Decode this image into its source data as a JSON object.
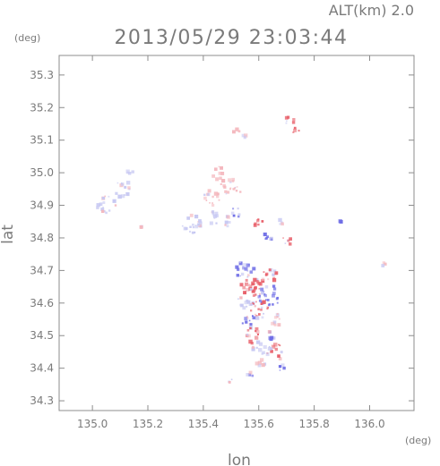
{
  "header": {
    "alt_label": "ALT(km) 2.0",
    "datetime": "2013/05/29 23:03:44"
  },
  "axes": {
    "lat_unit": "(deg)",
    "lon_unit": "(deg)",
    "xlabel": "lon",
    "ylabel": "lat",
    "xlim": [
      134.88,
      136.16
    ],
    "ylim": [
      34.27,
      35.36
    ],
    "xticks": [
      "135.0",
      "135.2",
      "135.4",
      "135.6",
      "135.8",
      "136.0"
    ],
    "xtick_values": [
      135.0,
      135.2,
      135.4,
      135.6,
      135.8,
      136.0
    ],
    "yticks": [
      "34.3",
      "34.4",
      "34.5",
      "34.6",
      "34.7",
      "34.8",
      "34.9",
      "35.0",
      "35.1",
      "35.2",
      "35.3"
    ],
    "ytick_values": [
      34.3,
      34.4,
      34.5,
      34.6,
      34.7,
      34.8,
      34.9,
      35.0,
      35.1,
      35.2,
      35.3
    ]
  },
  "colors": {
    "axis": "#8c8c8c",
    "text": "#7a7a7a",
    "positive": "#e8606a",
    "positive_light": "#f4b7bd",
    "negative": "#6f6ee6",
    "negative_light": "#c7c8f2"
  },
  "chart_data": {
    "type": "scatter",
    "title": "2013/05/29 23:03:44",
    "xlabel": "lon",
    "ylabel": "lat",
    "xlim": [
      134.88,
      136.16
    ],
    "ylim": [
      34.27,
      35.36
    ],
    "grid": false,
    "clusters": [
      {
        "lon": 135.05,
        "lat": 34.9,
        "r": 0.035,
        "color": "negative_light"
      },
      {
        "lon": 135.11,
        "lat": 34.95,
        "r": 0.03,
        "color": "negative_light"
      },
      {
        "lon": 135.14,
        "lat": 35.0,
        "r": 0.015,
        "color": "negative_light"
      },
      {
        "lon": 135.36,
        "lat": 34.84,
        "r": 0.035,
        "color": "negative_light"
      },
      {
        "lon": 135.44,
        "lat": 34.86,
        "r": 0.025,
        "color": "negative_light"
      },
      {
        "lon": 135.18,
        "lat": 34.83,
        "r": 0.007,
        "color": "positive"
      },
      {
        "lon": 135.52,
        "lat": 35.13,
        "r": 0.012,
        "color": "positive_light"
      },
      {
        "lon": 135.54,
        "lat": 35.11,
        "r": 0.015,
        "color": "positive_light"
      },
      {
        "lon": 135.71,
        "lat": 35.16,
        "r": 0.02,
        "color": "positive"
      },
      {
        "lon": 135.73,
        "lat": 35.13,
        "r": 0.015,
        "color": "positive"
      },
      {
        "lon": 135.45,
        "lat": 35.0,
        "r": 0.025,
        "color": "positive_light"
      },
      {
        "lon": 135.49,
        "lat": 34.96,
        "r": 0.03,
        "color": "positive_light"
      },
      {
        "lon": 135.43,
        "lat": 34.92,
        "r": 0.03,
        "color": "positive_light"
      },
      {
        "lon": 135.52,
        "lat": 34.94,
        "r": 0.02,
        "color": "positive_light"
      },
      {
        "lon": 135.52,
        "lat": 34.88,
        "r": 0.02,
        "color": "negative"
      },
      {
        "lon": 135.49,
        "lat": 34.85,
        "r": 0.02,
        "color": "negative_light"
      },
      {
        "lon": 135.6,
        "lat": 34.84,
        "r": 0.02,
        "color": "positive"
      },
      {
        "lon": 135.63,
        "lat": 34.8,
        "r": 0.02,
        "color": "negative"
      },
      {
        "lon": 135.68,
        "lat": 34.85,
        "r": 0.015,
        "color": "negative_light"
      },
      {
        "lon": 135.7,
        "lat": 34.79,
        "r": 0.02,
        "color": "positive"
      },
      {
        "lon": 135.55,
        "lat": 34.7,
        "r": 0.035,
        "color": "negative"
      },
      {
        "lon": 135.64,
        "lat": 34.68,
        "r": 0.03,
        "color": "positive"
      },
      {
        "lon": 135.57,
        "lat": 34.65,
        "r": 0.04,
        "color": "positive"
      },
      {
        "lon": 135.64,
        "lat": 34.62,
        "r": 0.04,
        "color": "negative"
      },
      {
        "lon": 135.55,
        "lat": 34.6,
        "r": 0.03,
        "color": "negative_light"
      },
      {
        "lon": 135.6,
        "lat": 34.58,
        "r": 0.035,
        "color": "positive"
      },
      {
        "lon": 135.56,
        "lat": 34.55,
        "r": 0.025,
        "color": "negative"
      },
      {
        "lon": 135.66,
        "lat": 34.55,
        "r": 0.025,
        "color": "positive_light"
      },
      {
        "lon": 135.58,
        "lat": 34.5,
        "r": 0.03,
        "color": "positive"
      },
      {
        "lon": 135.65,
        "lat": 34.5,
        "r": 0.02,
        "color": "negative"
      },
      {
        "lon": 135.6,
        "lat": 34.46,
        "r": 0.025,
        "color": "negative_light"
      },
      {
        "lon": 135.66,
        "lat": 34.45,
        "r": 0.03,
        "color": "positive"
      },
      {
        "lon": 135.61,
        "lat": 34.42,
        "r": 0.02,
        "color": "positive_light"
      },
      {
        "lon": 135.68,
        "lat": 34.4,
        "r": 0.015,
        "color": "negative"
      },
      {
        "lon": 135.57,
        "lat": 34.38,
        "r": 0.015,
        "color": "negative"
      },
      {
        "lon": 135.5,
        "lat": 34.36,
        "r": 0.01,
        "color": "negative_light"
      },
      {
        "lon": 135.9,
        "lat": 34.85,
        "r": 0.003,
        "color": "negative"
      },
      {
        "lon": 136.05,
        "lat": 34.72,
        "r": 0.008,
        "color": "positive_light"
      }
    ]
  }
}
